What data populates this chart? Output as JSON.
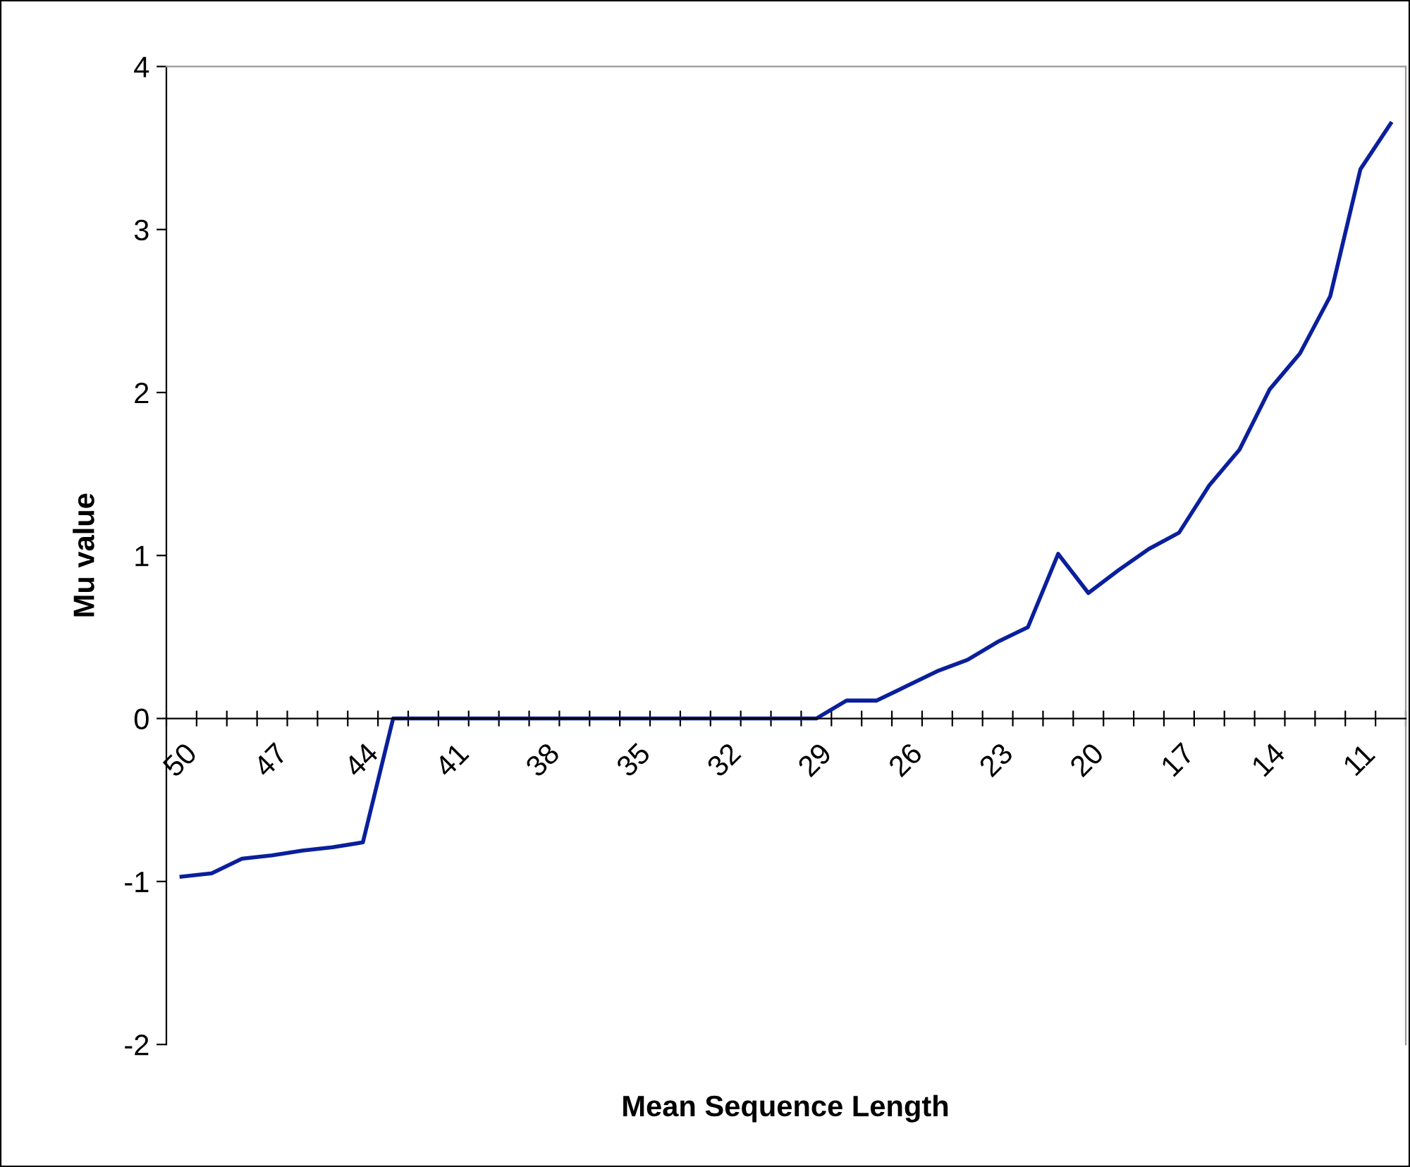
{
  "chart_data": {
    "type": "line",
    "xlabel": "Mean Sequence Length",
    "ylabel": "Mu value",
    "categories": [
      "50",
      null,
      null,
      "47",
      null,
      null,
      "44",
      null,
      null,
      "41",
      null,
      null,
      "38",
      null,
      null,
      "35",
      null,
      null,
      "32",
      null,
      null,
      "29",
      null,
      null,
      "26",
      null,
      null,
      "23",
      null,
      null,
      "20",
      null,
      null,
      "17",
      null,
      null,
      "14",
      null,
      null,
      "11",
      null
    ],
    "series": [
      {
        "color": "#0a1f9c",
        "values": [
          -0.97,
          -0.95,
          -0.86,
          -0.84,
          -0.81,
          -0.79,
          -0.76,
          0,
          0,
          0,
          0,
          0,
          0,
          0,
          0,
          0,
          0,
          0,
          0,
          0,
          0,
          0,
          0.11,
          0.11,
          0.2,
          0.29,
          0.36,
          0.47,
          0.56,
          1.01,
          0.77,
          0.91,
          1.04,
          1.14,
          1.43,
          1.65,
          2.02,
          2.24,
          2.59,
          3.37,
          3.65
        ]
      }
    ],
    "ylim": [
      -2,
      4
    ],
    "yticks": [
      -2,
      -1,
      0,
      1,
      2,
      3,
      4
    ],
    "grid": false,
    "legend": false,
    "marker": "none",
    "line_style": "solid"
  }
}
